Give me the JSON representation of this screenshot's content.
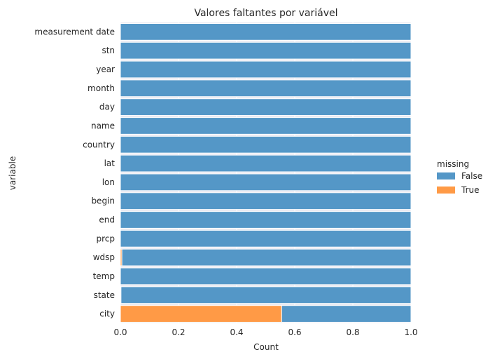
{
  "chart_data": {
    "type": "bar",
    "orientation": "horizontal",
    "stacked": "fill",
    "title": "Valores faltantes por variável",
    "xlabel": "Count",
    "ylabel": "variable",
    "xlim": [
      0,
      1
    ],
    "xticks": [
      "0.0",
      "0.2",
      "0.4",
      "0.6",
      "0.8",
      "1.0"
    ],
    "grid": true,
    "legend": {
      "title": "missing",
      "placement": "right"
    },
    "categories": [
      "measurement date",
      "stn",
      "year",
      "month",
      "day",
      "name",
      "country",
      "lat",
      "lon",
      "begin",
      "end",
      "prcp",
      "wdsp",
      "temp",
      "state",
      "city"
    ],
    "series": [
      {
        "name": "False",
        "color": "#5497c7",
        "values": [
          1,
          1,
          1,
          1,
          1,
          1,
          1,
          1,
          1,
          1,
          1,
          1,
          0.995,
          1,
          0.998,
          0.445
        ]
      },
      {
        "name": "True",
        "color": "#ff9a46",
        "values": [
          0,
          0,
          0,
          0,
          0,
          0,
          0,
          0,
          0,
          0,
          0,
          0,
          0.005,
          0,
          0.002,
          0.555
        ]
      }
    ]
  }
}
